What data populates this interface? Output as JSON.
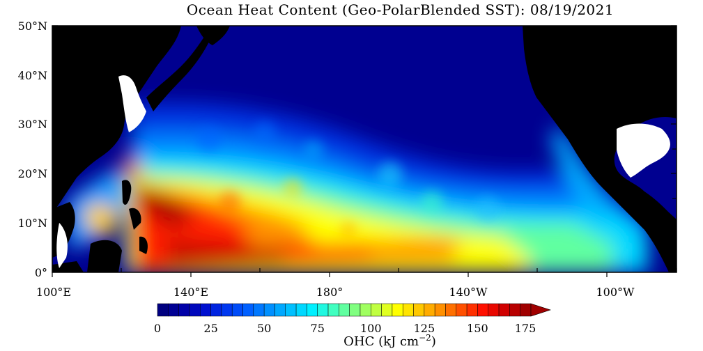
{
  "title": "Ocean Heat Content (Geo-PolarBlended SST): 08/19/2021",
  "map": {
    "lat_labels": [
      "50°N",
      "40°N",
      "30°N",
      "20°N",
      "10°N",
      "0°"
    ],
    "lon_labels": [
      "100°E",
      "140°E",
      "180°",
      "140°W",
      "100°W"
    ]
  },
  "colorbar": {
    "tick_labels": [
      "0",
      "25",
      "50",
      "75",
      "100",
      "125",
      "150",
      "175"
    ],
    "unit_label": "OHC (kJ cm",
    "unit_exponent": "−2",
    "unit_close": ")",
    "colors": [
      "#000080",
      "#0000a8",
      "#0010d0",
      "#0038f0",
      "#0060ff",
      "#0090ff",
      "#00c0ff",
      "#00f0ff",
      "#40ffc0",
      "#80ff80",
      "#c0ff40",
      "#ffff00",
      "#ffc800",
      "#ff9000",
      "#ff5000",
      "#ff1000",
      "#d00000",
      "#a00000"
    ]
  },
  "colors": {
    "ocean_deep": "#000090",
    "land": "#000000",
    "missing": "#ffffff"
  }
}
